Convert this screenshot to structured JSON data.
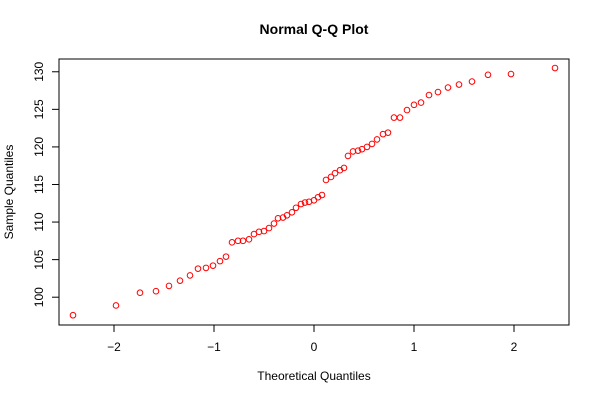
{
  "chart_data": {
    "type": "scatter",
    "title": "Normal Q-Q Plot",
    "xlabel": "Theoretical Quantiles",
    "ylabel": "Sample Quantiles",
    "xlim": [
      -2.55,
      2.55
    ],
    "ylim": [
      96.3,
      131.7
    ],
    "x_ticks": [
      -2,
      -1,
      0,
      1,
      2
    ],
    "x_tick_labels": [
      "−2",
      "−1",
      "0",
      "1",
      "2"
    ],
    "y_ticks": [
      100,
      105,
      110,
      115,
      120,
      125,
      130
    ],
    "y_tick_labels": [
      "100",
      "105",
      "110",
      "115",
      "120",
      "125",
      "130"
    ],
    "grid": false,
    "marker_color": "#ff0000",
    "points": [
      {
        "x": -2.41,
        "y": 97.6
      },
      {
        "x": -1.98,
        "y": 98.9
      },
      {
        "x": -1.74,
        "y": 100.6
      },
      {
        "x": -1.58,
        "y": 100.8
      },
      {
        "x": -1.45,
        "y": 101.5
      },
      {
        "x": -1.34,
        "y": 102.2
      },
      {
        "x": -1.24,
        "y": 102.9
      },
      {
        "x": -1.16,
        "y": 103.8
      },
      {
        "x": -1.08,
        "y": 103.9
      },
      {
        "x": -1.01,
        "y": 104.2
      },
      {
        "x": -0.94,
        "y": 104.8
      },
      {
        "x": -0.88,
        "y": 105.4
      },
      {
        "x": -0.82,
        "y": 107.3
      },
      {
        "x": -0.76,
        "y": 107.5
      },
      {
        "x": -0.71,
        "y": 107.5
      },
      {
        "x": -0.65,
        "y": 107.7
      },
      {
        "x": -0.6,
        "y": 108.4
      },
      {
        "x": -0.55,
        "y": 108.7
      },
      {
        "x": -0.5,
        "y": 108.8
      },
      {
        "x": -0.45,
        "y": 109.2
      },
      {
        "x": -0.4,
        "y": 109.8
      },
      {
        "x": -0.36,
        "y": 110.5
      },
      {
        "x": -0.31,
        "y": 110.6
      },
      {
        "x": -0.27,
        "y": 110.9
      },
      {
        "x": -0.22,
        "y": 111.3
      },
      {
        "x": -0.18,
        "y": 111.9
      },
      {
        "x": -0.13,
        "y": 112.4
      },
      {
        "x": -0.09,
        "y": 112.6
      },
      {
        "x": -0.05,
        "y": 112.7
      },
      {
        "x": 0.0,
        "y": 112.9
      },
      {
        "x": 0.04,
        "y": 113.3
      },
      {
        "x": 0.08,
        "y": 113.6
      },
      {
        "x": 0.12,
        "y": 115.6
      },
      {
        "x": 0.17,
        "y": 116.0
      },
      {
        "x": 0.21,
        "y": 116.5
      },
      {
        "x": 0.26,
        "y": 116.9
      },
      {
        "x": 0.3,
        "y": 117.2
      },
      {
        "x": 0.34,
        "y": 118.8
      },
      {
        "x": 0.39,
        "y": 119.4
      },
      {
        "x": 0.44,
        "y": 119.5
      },
      {
        "x": 0.48,
        "y": 119.7
      },
      {
        "x": 0.53,
        "y": 120.0
      },
      {
        "x": 0.58,
        "y": 120.4
      },
      {
        "x": 0.63,
        "y": 121.0
      },
      {
        "x": 0.69,
        "y": 121.7
      },
      {
        "x": 0.74,
        "y": 121.9
      },
      {
        "x": 0.8,
        "y": 123.9
      },
      {
        "x": 0.86,
        "y": 123.9
      },
      {
        "x": 0.93,
        "y": 124.9
      },
      {
        "x": 1.0,
        "y": 125.6
      },
      {
        "x": 1.07,
        "y": 125.9
      },
      {
        "x": 1.15,
        "y": 126.9
      },
      {
        "x": 1.24,
        "y": 127.3
      },
      {
        "x": 1.34,
        "y": 127.9
      },
      {
        "x": 1.45,
        "y": 128.3
      },
      {
        "x": 1.58,
        "y": 128.7
      },
      {
        "x": 1.74,
        "y": 129.6
      },
      {
        "x": 1.97,
        "y": 129.7
      },
      {
        "x": 2.41,
        "y": 130.5
      }
    ]
  }
}
